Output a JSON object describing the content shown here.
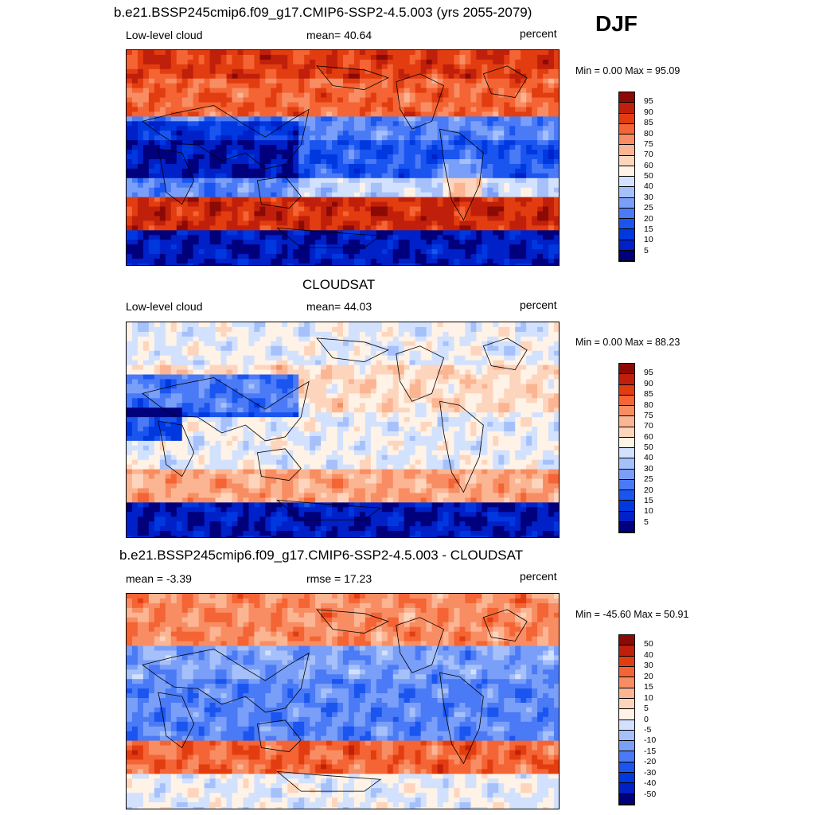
{
  "season": "DJF",
  "colors": {
    "full": [
      "#00007d",
      "#0020c8",
      "#0038e0",
      "#1a55f0",
      "#4a7af5",
      "#7a9ff8",
      "#a6c0fa",
      "#d2e1fd",
      "#fff2e6",
      "#fdd5bd",
      "#fbb593",
      "#f88d63",
      "#f46434",
      "#e23d10",
      "#c0200b",
      "#8c0a05"
    ],
    "ocean_land": [
      "#f6c9b2",
      "#9db8f5"
    ]
  },
  "panels": [
    {
      "title": "b.e21.BSSP245cmip6.f09_g17.CMIP6-SSP2-4.5.003 (yrs 2055-2079)",
      "left_label": "Low-level cloud",
      "center_label": "mean=  40.64",
      "right_label": "percent",
      "minmax": "Min =    0.00 Max =  95.09",
      "colorbar_labels": [
        "95",
        "90",
        "85",
        "80",
        "75",
        "70",
        "60",
        "50",
        "40",
        "30",
        "25",
        "20",
        "15",
        "10",
        "5"
      ],
      "field": "model"
    },
    {
      "title": "CLOUDSAT",
      "left_label": "Low-level cloud",
      "center_label": "mean=  44.03",
      "right_label": "percent",
      "minmax": "Min =    0.00 Max =  88.23",
      "colorbar_labels": [
        "95",
        "90",
        "85",
        "80",
        "75",
        "70",
        "60",
        "50",
        "40",
        "30",
        "25",
        "20",
        "15",
        "10",
        "5"
      ],
      "field": "obs"
    },
    {
      "title": "b.e21.BSSP245cmip6.f09_g17.CMIP6-SSP2-4.5.003 - CLOUDSAT",
      "left_label": "mean =  -3.39",
      "center_label": "rmse =  17.23",
      "right_label": "percent",
      "minmax": "Min = -45.60 Max =  50.91",
      "colorbar_labels": [
        "50",
        "40",
        "30",
        "20",
        "15",
        "10",
        "5",
        "0",
        "-5",
        "-10",
        "-15",
        "-20",
        "-30",
        "-40",
        "-50"
      ],
      "field": "diff"
    }
  ]
}
